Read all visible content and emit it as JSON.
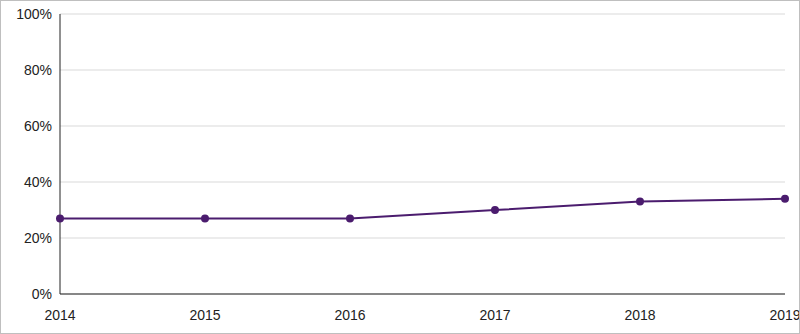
{
  "chart_data": {
    "type": "line",
    "categories": [
      "2014",
      "2015",
      "2016",
      "2017",
      "2018",
      "2019"
    ],
    "values": [
      27,
      27,
      27,
      30,
      33,
      34
    ],
    "color": "#4b1c6e",
    "marker": "circle",
    "ylim": [
      0,
      100
    ],
    "yticks": [
      {
        "value": 0,
        "label": "0%"
      },
      {
        "value": 20,
        "label": "20%"
      },
      {
        "value": 40,
        "label": "40%"
      },
      {
        "value": 60,
        "label": "60%"
      },
      {
        "value": 80,
        "label": "80%"
      },
      {
        "value": 100,
        "label": "100%"
      }
    ],
    "grid": true
  }
}
